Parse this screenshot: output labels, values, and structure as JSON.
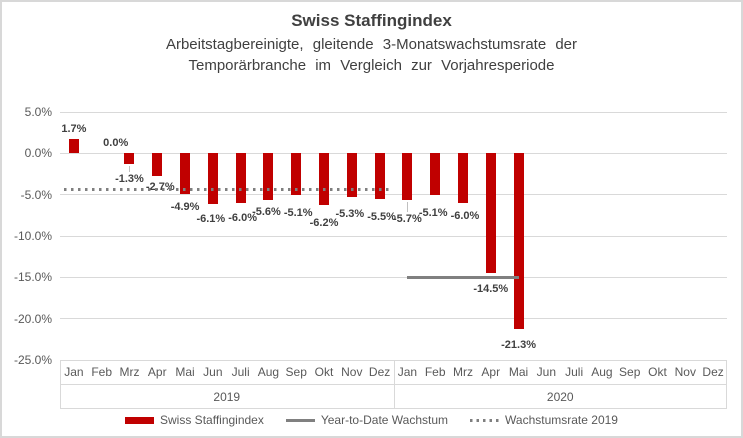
{
  "frame": {
    "border_color": "#d8d8d8",
    "background": "#ffffff"
  },
  "header": {
    "title": "Swiss Staffingindex",
    "subtitle_lines": [
      "Arbeitstagbereinigte, gleitende 3-Monatswachstumsrate der",
      "Temporärbranche im Vergleich zur Vorjahresperiode"
    ]
  },
  "chart_data": {
    "type": "bar",
    "title": "Swiss Staffingindex",
    "subtitle": "Arbeitstagbereinigte, gleitende 3-Monatswachstumsrate der Temporärbranche im Vergleich zur Vorjahresperiode",
    "grid": true,
    "y_axis": {
      "min": -25,
      "max": 5,
      "step": 5,
      "format": "percent",
      "tick_labels": [
        "5.0%",
        "0.0%",
        "-5.0%",
        "-10.0%",
        "-15.0%",
        "-20.0%",
        "-25.0%"
      ],
      "tick_values": [
        5,
        0,
        -5,
        -10,
        -15,
        -20,
        -25
      ]
    },
    "x_axis": {
      "month_labels": [
        "Jan",
        "Feb",
        "Mrz",
        "Apr",
        "Mai",
        "Jun",
        "Juli",
        "Aug",
        "Sep",
        "Okt",
        "Nov",
        "Dez",
        "Jan",
        "Feb",
        "Mrz",
        "Apr",
        "Mai",
        "Jun",
        "Juli",
        "Aug",
        "Sep",
        "Okt",
        "Nov",
        "Dez"
      ],
      "year_groups": [
        {
          "label": "2019",
          "months": 12
        },
        {
          "label": "2020",
          "months": 12
        }
      ]
    },
    "series": [
      {
        "name": "Swiss Staffingindex",
        "type": "bar",
        "color": "#C00000",
        "values": [
          1.7,
          0.0,
          -1.3,
          -2.7,
          -4.9,
          -6.1,
          -6.0,
          -5.6,
          -5.1,
          -6.2,
          -5.3,
          -5.5,
          -5.7,
          -5.1,
          -6.0,
          -14.5,
          -21.3,
          null,
          null,
          null,
          null,
          null,
          null,
          null
        ],
        "data_labels": [
          "1.7%",
          "0.0%",
          "-1.3%",
          "-2.7%",
          "-4.9%",
          "-6.1%",
          "-6.0%",
          "-5.6%",
          "-5.1%",
          "-6.2%",
          "-5.3%",
          "-5.5%",
          "-5.7%",
          "-5.1%",
          "-6.0%",
          "-14.5%",
          "-21.3%",
          null,
          null,
          null,
          null,
          null,
          null,
          null
        ]
      },
      {
        "name": "Year-to-Date Wachstum",
        "type": "line",
        "color": "#808080",
        "value": -15.0,
        "start_month_index": 12,
        "end_month_index": 16
      },
      {
        "name": "Wachstumsrate 2019",
        "type": "dotted_line",
        "color": "#7F7F7F",
        "value": -4.4,
        "start_month_index": 0,
        "end_month_index": 11
      }
    ],
    "legend": {
      "position": "bottom",
      "items": [
        {
          "label": "Swiss Staffingindex",
          "swatch": "bar",
          "color": "#C00000"
        },
        {
          "label": "Year-to-Date Wachstum",
          "swatch": "line",
          "color": "#808080"
        },
        {
          "label": "Wachstumsrate 2019",
          "swatch": "dotted",
          "color": "#7F7F7F"
        }
      ]
    }
  },
  "colors": {
    "bar": "#C00000",
    "grid": "#D9D9D9",
    "axis_text": "#595959",
    "label_text": "#404040",
    "title_text": "#404040",
    "ytd_line": "#808080",
    "dotted_line": "#7F7F7F"
  }
}
